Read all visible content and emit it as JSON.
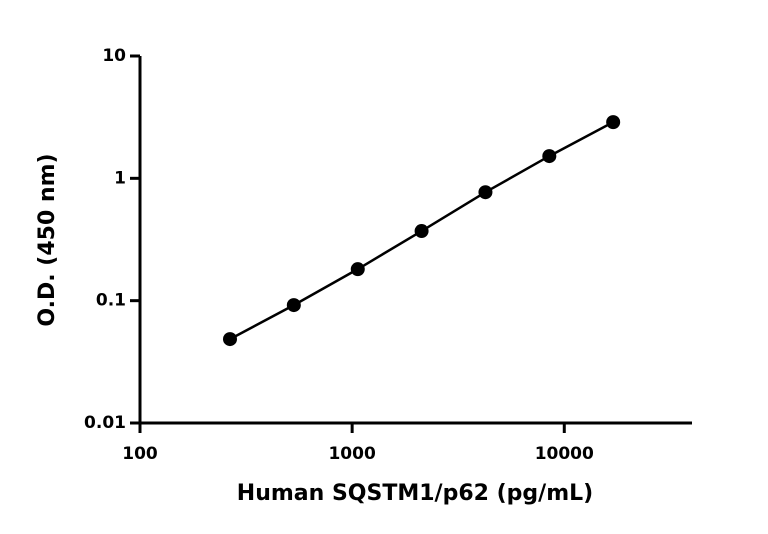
{
  "chart_data": {
    "type": "scatter",
    "line": true,
    "color": "#000000",
    "xlabel": "Human SQSTM1/p62 (pg/mL)",
    "ylabel": "O.D. (450 nm)",
    "xscale": "log",
    "yscale": "log",
    "x": [
      265.6,
      531,
      1063,
      2125,
      4250,
      8500,
      17000
    ],
    "values": [
      0.0485,
      0.092,
      0.181,
      0.371,
      0.77,
      1.52,
      2.88
    ],
    "xlim": [
      100,
      40000
    ],
    "xticks": [
      100,
      1000,
      10000
    ],
    "ylim": [
      0.01,
      10
    ],
    "yticks": [
      0.01,
      0.1,
      1,
      10
    ]
  }
}
